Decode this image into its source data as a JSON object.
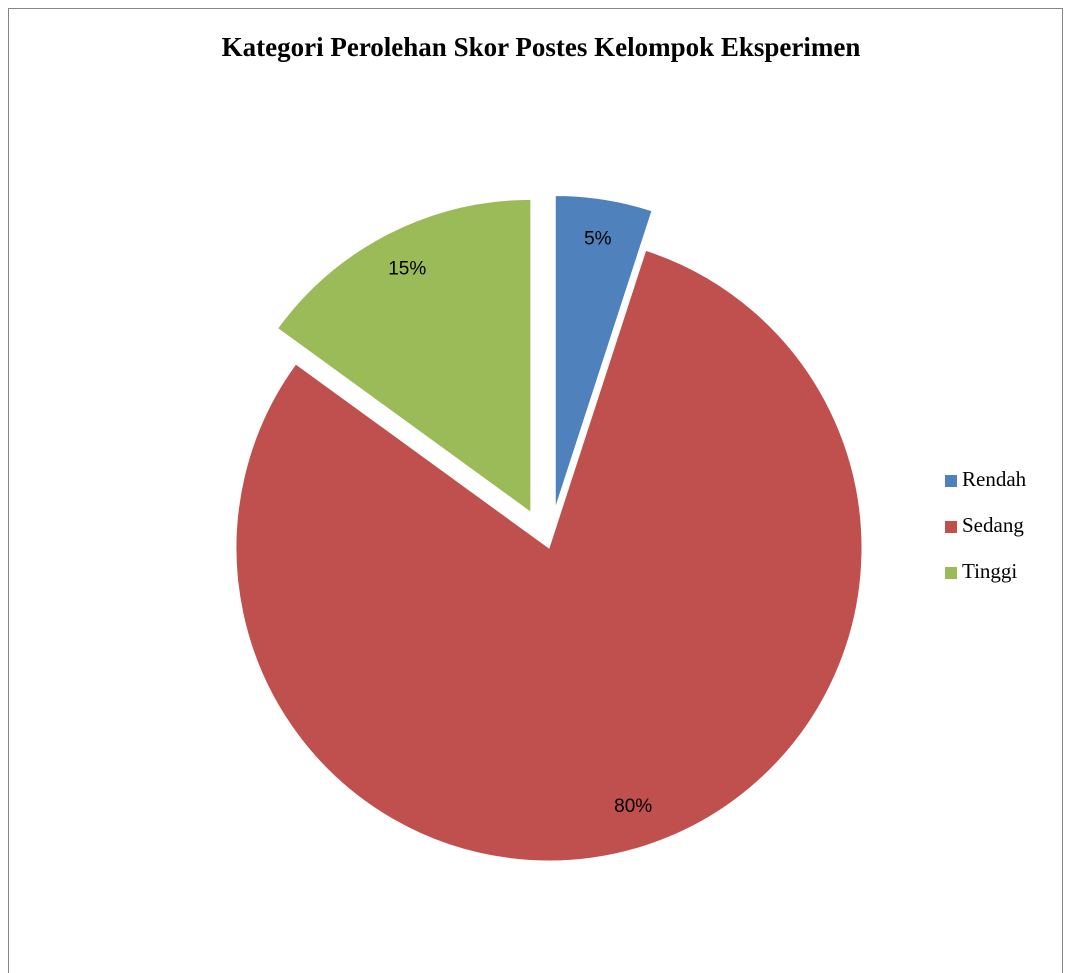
{
  "chart_data": {
    "type": "pie",
    "title": "Kategori Perolehan Skor Postes Kelompok Eksperimen",
    "categories": [
      "Rendah",
      "Sedang",
      "Tinggi"
    ],
    "values": [
      5,
      80,
      15
    ],
    "value_labels": [
      "5%",
      "80%",
      "15%"
    ],
    "colors": [
      "#4f81bd",
      "#c0504d",
      "#9bbb59"
    ],
    "exploded": [
      true,
      false,
      true
    ],
    "legend": "right"
  }
}
